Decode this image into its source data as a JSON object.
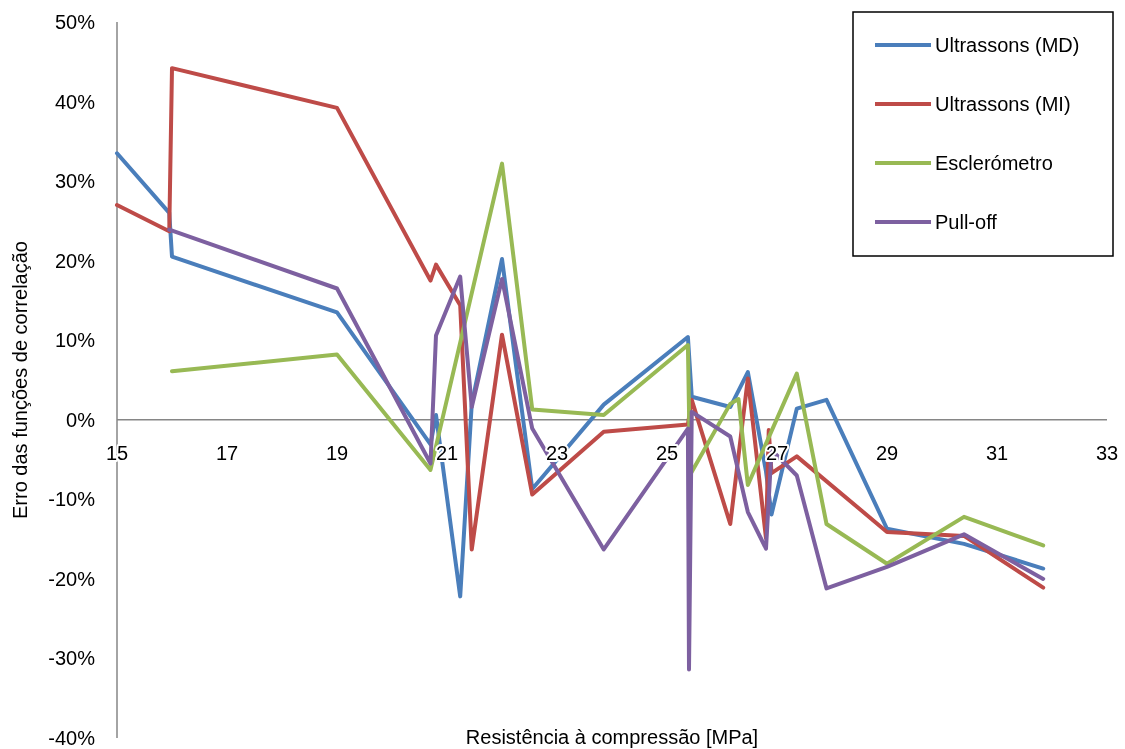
{
  "chart_data": {
    "type": "line",
    "xlabel": "Resistência à compressão [MPa]",
    "ylabel": "Erro das funções de correlação",
    "xlim": [
      15,
      33
    ],
    "xticks": [
      15,
      17,
      19,
      21,
      23,
      25,
      27,
      29,
      31,
      33
    ],
    "ylim": [
      -40,
      50
    ],
    "yticks": [
      {
        "value": -40,
        "label": "-40%"
      },
      {
        "value": -30,
        "label": "-30%"
      },
      {
        "value": -20,
        "label": "-20%"
      },
      {
        "value": -10,
        "label": "-10%"
      },
      {
        "value": 0,
        "label": "0%"
      },
      {
        "value": 10,
        "label": "10%"
      },
      {
        "value": 20,
        "label": "20%"
      },
      {
        "value": 30,
        "label": "30%"
      },
      {
        "value": 40,
        "label": "40%"
      },
      {
        "value": 50,
        "label": "50%"
      }
    ],
    "legend": "top right",
    "grid": false,
    "line_style": "solid",
    "series": [
      {
        "name": "Ultrassons (MD)",
        "color": "#4a7ebb",
        "x": [
          15,
          15.95,
          16,
          19,
          20.7,
          20.8,
          21.24,
          21.45,
          22,
          22.55,
          23.85,
          25.38,
          25.45,
          26.15,
          26.47,
          26.8,
          26.9,
          27.36,
          27.9,
          29,
          30.4,
          31.84
        ],
        "values": [
          33.5,
          26,
          20.5,
          13.5,
          -3.1,
          0.6,
          -22.2,
          2,
          20.2,
          -8.7,
          1.9,
          10.4,
          2.9,
          1.6,
          6,
          -6.5,
          -11.9,
          1.4,
          2.5,
          -13.7,
          -15.6,
          -18.7
        ]
      },
      {
        "name": "Ultrassons (MI)",
        "color": "#be4b48",
        "x": [
          15,
          15.95,
          16,
          19,
          20.7,
          20.8,
          21.24,
          21.45,
          22,
          22.55,
          23.85,
          25.38,
          25.45,
          26.15,
          26.47,
          26.8,
          26.85,
          26.9,
          27.36,
          29,
          30.4,
          31.84
        ],
        "values": [
          27,
          23.7,
          44.2,
          39.2,
          17.5,
          19.5,
          14.4,
          -16.3,
          10.7,
          -9.4,
          -1.5,
          -0.6,
          2.5,
          -13.1,
          5.2,
          -14.9,
          -1.3,
          -6.7,
          -4.6,
          -14.1,
          -14.6,
          -21.1
        ]
      },
      {
        "name": "Esclerómetro",
        "color": "#98b954",
        "x": [
          16,
          19,
          20.7,
          22,
          22.55,
          23.85,
          25.38,
          25.42,
          26.15,
          26.3,
          26.47,
          27.36,
          27.9,
          29,
          30.4,
          31.84
        ],
        "values": [
          6.1,
          8.2,
          -6.3,
          32.2,
          1.3,
          0.6,
          9.4,
          -6.9,
          2,
          2.6,
          -8.2,
          5.8,
          -13.1,
          -18.1,
          -12.2,
          -15.8
        ]
      },
      {
        "name": "Pull-off",
        "color": "#7d60a0",
        "x": [
          15.95,
          19,
          20.7,
          20.8,
          21.24,
          21.45,
          22,
          22.55,
          23.85,
          25.38,
          25.4,
          25.45,
          26.15,
          26.47,
          26.8,
          26.9,
          27.36,
          27.9,
          29,
          30.4,
          31.84
        ],
        "values": [
          23.9,
          16.5,
          -5.5,
          10.6,
          18,
          1.6,
          17.7,
          -1.1,
          -16.3,
          -1.1,
          -31.4,
          1,
          -2.1,
          -11.6,
          -16.2,
          -3.8,
          -7,
          -21.2,
          -18.5,
          -14.4,
          -20
        ]
      }
    ]
  }
}
